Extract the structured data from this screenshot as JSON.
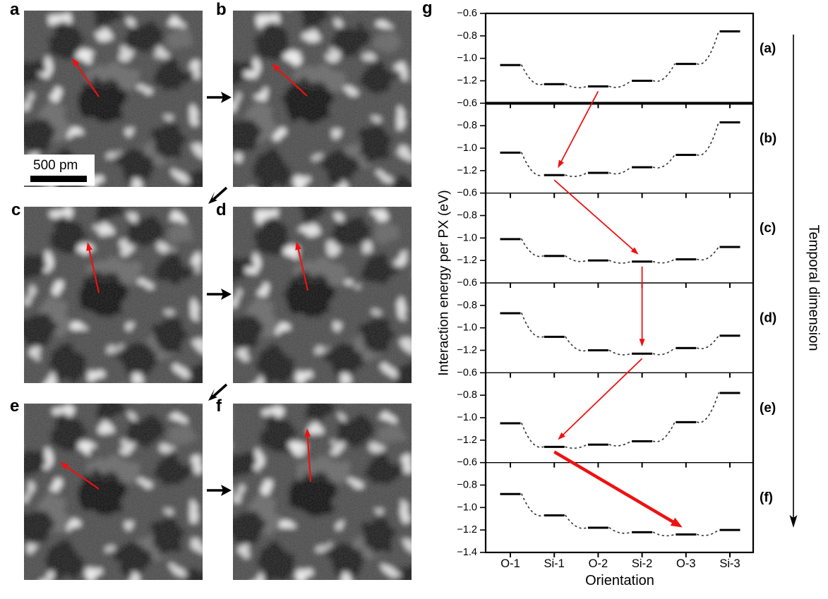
{
  "colors": {
    "red_arrow": "#ee1111",
    "black": "#000000",
    "dotted": "#3a3a3a"
  },
  "left_panels": {
    "labels": [
      "a",
      "b",
      "c",
      "d",
      "e",
      "f"
    ],
    "scale_bar_label": "500 pm"
  },
  "chart_data": {
    "type": "line",
    "panel_label": "g",
    "xlabel": "Orientation",
    "ylabel": "Interaction energy per PX (eV)",
    "right_axis_label": "Temporal dimension",
    "categories": [
      "O-1",
      "Si-1",
      "O-2",
      "Si-2",
      "O-3",
      "Si-3"
    ],
    "panel_ylim": [
      -1.4,
      -0.6
    ],
    "yticks": [
      -0.6,
      -0.8,
      -1.0,
      -1.2
    ],
    "bottom_extra_tick": -1.4,
    "series": [
      {
        "name": "(a)",
        "values": [
          -1.06,
          -1.23,
          -1.25,
          -1.2,
          -1.05,
          -0.76
        ]
      },
      {
        "name": "(b)",
        "values": [
          -1.04,
          -1.24,
          -1.22,
          -1.17,
          -1.06,
          -0.77
        ]
      },
      {
        "name": "(c)",
        "values": [
          -1.01,
          -1.16,
          -1.2,
          -1.21,
          -1.19,
          -1.08
        ]
      },
      {
        "name": "(d)",
        "values": [
          -0.87,
          -1.08,
          -1.2,
          -1.23,
          -1.18,
          -1.07
        ]
      },
      {
        "name": "(e)",
        "values": [
          -1.05,
          -1.26,
          -1.24,
          -1.21,
          -1.04,
          -0.78
        ]
      },
      {
        "name": "(f)",
        "values": [
          -0.88,
          -1.07,
          -1.18,
          -1.22,
          -1.24,
          -1.2
        ]
      }
    ],
    "transitions": [
      {
        "from_panel": "(a)",
        "from_orientation": "O-2",
        "to_panel": "(b)",
        "to_orientation": "Si-1",
        "emphasis": false
      },
      {
        "from_panel": "(b)",
        "from_orientation": "Si-1",
        "to_panel": "(c)",
        "to_orientation": "Si-2",
        "emphasis": false
      },
      {
        "from_panel": "(c)",
        "from_orientation": "Si-2",
        "to_panel": "(d)",
        "to_orientation": "Si-2",
        "emphasis": false
      },
      {
        "from_panel": "(d)",
        "from_orientation": "Si-2",
        "to_panel": "(e)",
        "to_orientation": "Si-1",
        "emphasis": false
      },
      {
        "from_panel": "(e)",
        "from_orientation": "Si-1",
        "to_panel": "(f)",
        "to_orientation": "O-3",
        "emphasis": true
      }
    ]
  }
}
